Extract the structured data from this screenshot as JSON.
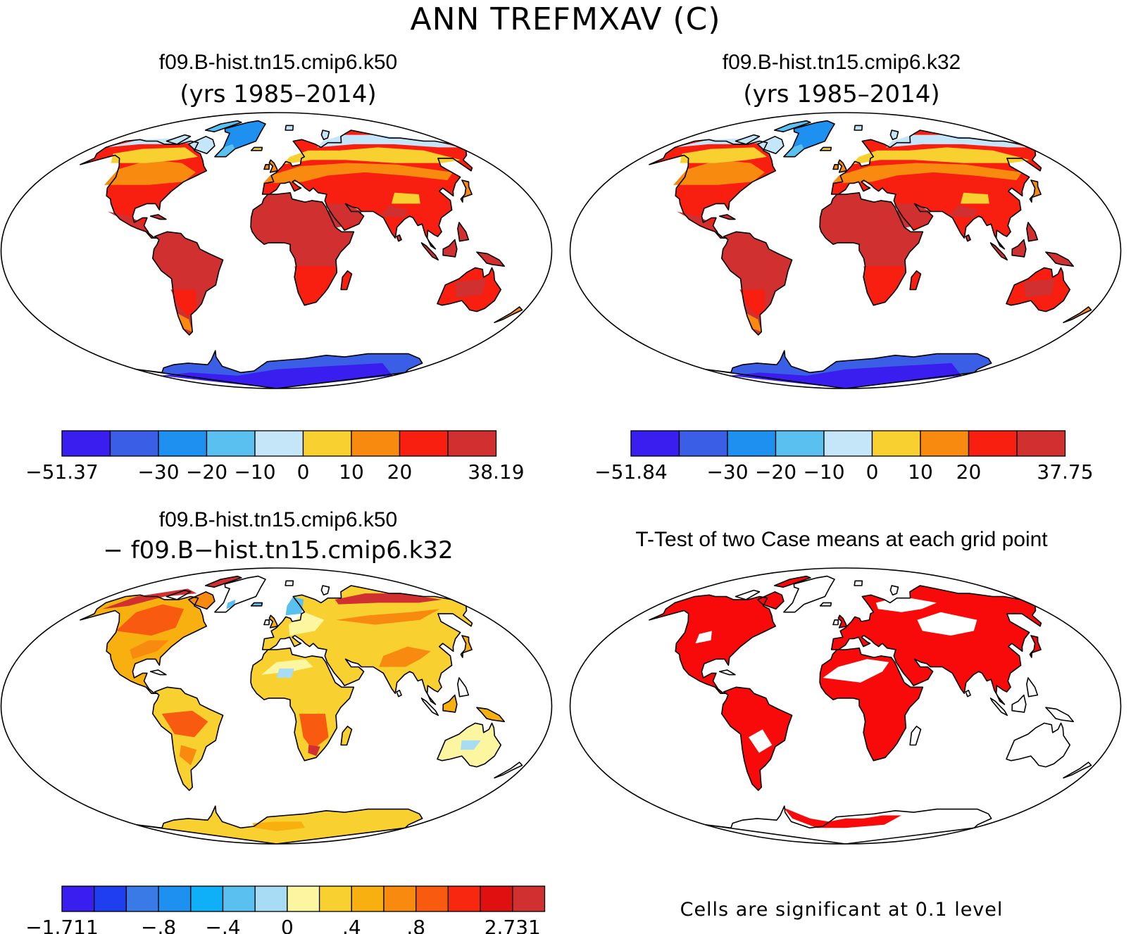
{
  "figure": {
    "title": "ANN TREFMXAV (C)"
  },
  "panels": [
    {
      "title": "f09.B-hist.tn15.cmip6.k50",
      "subtitle": "(yrs 1985–2014)",
      "kind": "field",
      "colorbar": {
        "colors": [
          "#3a1ef0",
          "#3a5ee6",
          "#1e90f0",
          "#5ac0f0",
          "#c4e6f8",
          "#f8d030",
          "#f88a10",
          "#f81e10",
          "#d03030"
        ],
        "tick_labels": [
          "−51.37",
          "−30",
          "−20",
          "−10",
          "0",
          "10",
          "20",
          "38.19"
        ],
        "tick_boundaries": [
          0,
          2,
          3,
          4,
          5,
          6,
          7,
          9
        ]
      }
    },
    {
      "title": "f09.B-hist.tn15.cmip6.k32",
      "subtitle": "(yrs 1985–2014)",
      "kind": "field",
      "colorbar": {
        "colors": [
          "#3a1ef0",
          "#3a5ee6",
          "#1e90f0",
          "#5ac0f0",
          "#c4e6f8",
          "#f8d030",
          "#f88a10",
          "#f81e10",
          "#d03030"
        ],
        "tick_labels": [
          "−51.84",
          "−30",
          "−20",
          "−10",
          "0",
          "10",
          "20",
          "37.75"
        ],
        "tick_boundaries": [
          0,
          2,
          3,
          4,
          5,
          6,
          7,
          9
        ]
      }
    },
    {
      "title": "f09.B-hist.tn15.cmip6.k50",
      "subtitle": "− f09.B−hist.tn15.cmip6.k32",
      "kind": "difference",
      "colorbar": {
        "colors": [
          "#3a1ef0",
          "#1e3ef0",
          "#3a7ae6",
          "#1e90f0",
          "#10b0f8",
          "#5ac0f0",
          "#a8dcf4",
          "#fcf6a0",
          "#f8d030",
          "#f8b010",
          "#f88a10",
          "#f85a10",
          "#f82810",
          "#e01010",
          "#d03030"
        ],
        "tick_labels": [
          "−1.711",
          "−.8",
          "−.4",
          "0",
          ".4",
          ".8",
          "2.731"
        ],
        "tick_boundaries": [
          0,
          3,
          5,
          7,
          9,
          11,
          14
        ]
      }
    },
    {
      "title": "T-Test of two Case means at each grid point",
      "subtitle": "",
      "kind": "ttest",
      "note": "Cells are significant at 0.1 level",
      "significant_color": "#f80a0a"
    }
  ]
}
